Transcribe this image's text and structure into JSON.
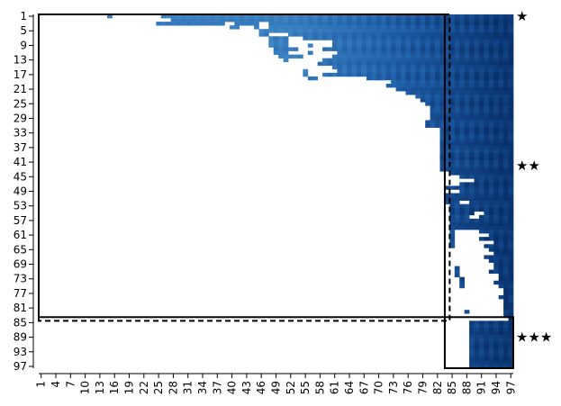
{
  "chart_data": {
    "type": "heatmap",
    "n": 97,
    "colormap": "Blues",
    "colors": {
      "dark": "#08306b",
      "mid": "#1f5fa8",
      "light": "#3f86c4",
      "line": "#000000"
    },
    "x_tick_labels": [
      "1",
      "4",
      "7",
      "10",
      "13",
      "16",
      "19",
      "22",
      "25",
      "28",
      "31",
      "34",
      "37",
      "40",
      "43",
      "46",
      "49",
      "52",
      "55",
      "58",
      "61",
      "64",
      "67",
      "70",
      "73",
      "76",
      "79",
      "82",
      "85",
      "88",
      "91",
      "94",
      "97"
    ],
    "y_tick_labels": [
      "1",
      "5",
      "9",
      "13",
      "17",
      "21",
      "25",
      "29",
      "33",
      "37",
      "41",
      "45",
      "49",
      "53",
      "57",
      "61",
      "65",
      "69",
      "73",
      "77",
      "81",
      "85",
      "89",
      "93",
      "97"
    ],
    "row_start": [
      13,
      25,
      25,
      40,
      46,
      46,
      48,
      48,
      48,
      49,
      49,
      50,
      51,
      54,
      55,
      55,
      55,
      56,
      67,
      72,
      74,
      76,
      78,
      78,
      80,
      80,
      80,
      80,
      80,
      80,
      80,
      82,
      82,
      82,
      82,
      82,
      82,
      82,
      82,
      82,
      82,
      82,
      82,
      82,
      84,
      84,
      84,
      84,
      84,
      84,
      84,
      84,
      85,
      85,
      85,
      85,
      85,
      85,
      85,
      85,
      85,
      85,
      85,
      85,
      86,
      86,
      86,
      86,
      86,
      86,
      86,
      86,
      87,
      87,
      87,
      88,
      88,
      88,
      88,
      88,
      88,
      88,
      89,
      89,
      89,
      89,
      89,
      89,
      89,
      89,
      89,
      89,
      89,
      89,
      89,
      89,
      89
    ],
    "gaps": [
      [
        1,
        13,
        14
      ],
      [
        1,
        16,
        25
      ],
      [
        2,
        25,
        27
      ],
      [
        3,
        39,
        40
      ],
      [
        3,
        46,
        47
      ],
      [
        4,
        42,
        44
      ],
      [
        4,
        46,
        47
      ],
      [
        6,
        48,
        51
      ],
      [
        7,
        52,
        54
      ],
      [
        8,
        52,
        58
      ],
      [
        8,
        59,
        60
      ],
      [
        9,
        52,
        55
      ],
      [
        9,
        57,
        60
      ],
      [
        10,
        54,
        58
      ],
      [
        11,
        52,
        55
      ],
      [
        11,
        57,
        61
      ],
      [
        12,
        55,
        60
      ],
      [
        13,
        52,
        58
      ],
      [
        14,
        53,
        57
      ],
      [
        15,
        55,
        60
      ],
      [
        16,
        56,
        61
      ],
      [
        17,
        56,
        58
      ],
      [
        18,
        58,
        67
      ],
      [
        19,
        60,
        72
      ],
      [
        20,
        64,
        70
      ],
      [
        21,
        66,
        72
      ],
      [
        22,
        70,
        74
      ],
      [
        23,
        72,
        76
      ],
      [
        24,
        74,
        78
      ],
      [
        25,
        76,
        78
      ],
      [
        26,
        76,
        80
      ],
      [
        27,
        77,
        80
      ],
      [
        28,
        78,
        80
      ],
      [
        29,
        79,
        80
      ],
      [
        32,
        81,
        82
      ],
      [
        33,
        80,
        82
      ],
      [
        34,
        80,
        82
      ],
      [
        35,
        80,
        82
      ],
      [
        36,
        80,
        82
      ],
      [
        37,
        80,
        82
      ],
      [
        38,
        80,
        82
      ],
      [
        39,
        80,
        82
      ],
      [
        40,
        80,
        82
      ],
      [
        41,
        80,
        82
      ],
      [
        42,
        80,
        82
      ],
      [
        43,
        80,
        82
      ],
      [
        44,
        82,
        84
      ],
      [
        45,
        84,
        86
      ],
      [
        46,
        84,
        89
      ],
      [
        47,
        84,
        86
      ],
      [
        49,
        84,
        86
      ],
      [
        52,
        87,
        88
      ],
      [
        55,
        90,
        91
      ],
      [
        56,
        89,
        90
      ],
      [
        60,
        86,
        90
      ],
      [
        61,
        86,
        92
      ],
      [
        62,
        86,
        90
      ],
      [
        63,
        86,
        93
      ],
      [
        64,
        86,
        91
      ],
      [
        65,
        86,
        92
      ],
      [
        66,
        86,
        93
      ],
      [
        67,
        86,
        91
      ],
      [
        68,
        86,
        92
      ],
      [
        69,
        86,
        93
      ],
      [
        70,
        87,
        93
      ],
      [
        71,
        87,
        92
      ],
      [
        72,
        87,
        94
      ],
      [
        73,
        88,
        94
      ],
      [
        74,
        88,
        93
      ],
      [
        75,
        88,
        94
      ],
      [
        76,
        88,
        95
      ],
      [
        77,
        88,
        95
      ],
      [
        78,
        88,
        94
      ],
      [
        79,
        88,
        95
      ],
      [
        80,
        88,
        95
      ],
      [
        81,
        88,
        95
      ],
      [
        82,
        89,
        95
      ],
      [
        83,
        89,
        95
      ],
      [
        84,
        89,
        96
      ]
    ],
    "boxes": [
      {
        "style": "dashed",
        "from": 1,
        "to": 84
      },
      {
        "style": "solid",
        "from": 1,
        "to": 83
      },
      {
        "style": "solid",
        "from": 84,
        "to": 97
      }
    ],
    "markers": [
      {
        "label": "★",
        "row": 1
      },
      {
        "label": "★★",
        "row": 42
      },
      {
        "label": "★★★",
        "row": 89
      }
    ],
    "grid": false,
    "title": "",
    "xlabel": "",
    "ylabel": ""
  }
}
